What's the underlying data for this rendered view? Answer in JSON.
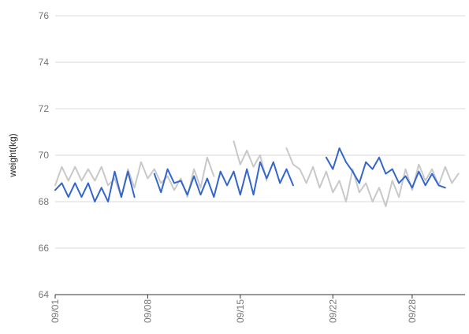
{
  "chart_data": {
    "type": "line",
    "title": "",
    "xlabel": "",
    "ylabel": "weight(kg)",
    "ylim": [
      64,
      76
    ],
    "yticks": [
      64,
      66,
      68,
      70,
      72,
      74,
      76
    ],
    "xlim": [
      "2023-09-01",
      "2023-10-02"
    ],
    "xticks": [
      {
        "date": "2023-09-01",
        "label": "09/01"
      },
      {
        "date": "2023-09-08",
        "label": "09/08"
      },
      {
        "date": "2023-09-15",
        "label": "09/15"
      },
      {
        "date": "2023-09-22",
        "label": "09/22"
      },
      {
        "date": "2023-09-28",
        "label": "09/28"
      }
    ],
    "grid": true,
    "legend": "none",
    "series": [
      {
        "color": "#3366cc",
        "points": [
          {
            "x": "2023-09-01T00:00",
            "y": 68.5
          },
          {
            "x": "2023-09-01T12:00",
            "y": 68.8
          },
          {
            "x": "2023-09-02T00:00",
            "y": 68.2
          },
          {
            "x": "2023-09-02T12:00",
            "y": 68.8
          },
          {
            "x": "2023-09-03T00:00",
            "y": 68.2
          },
          {
            "x": "2023-09-03T12:00",
            "y": 68.8
          },
          {
            "x": "2023-09-04T00:00",
            "y": 68.0
          },
          {
            "x": "2023-09-04T12:00",
            "y": 68.6
          },
          {
            "x": "2023-09-05T00:00",
            "y": 68.0
          },
          {
            "x": "2023-09-05T12:00",
            "y": 69.3
          },
          {
            "x": "2023-09-06T00:00",
            "y": 68.2
          },
          {
            "x": "2023-09-06T12:00",
            "y": 69.3
          },
          {
            "x": "2023-09-07T00:00",
            "y": 68.2
          },
          null,
          {
            "x": "2023-09-08T12:00",
            "y": 69.2
          },
          {
            "x": "2023-09-09T00:00",
            "y": 68.4
          },
          {
            "x": "2023-09-09T12:00",
            "y": 69.4
          },
          {
            "x": "2023-09-10T00:00",
            "y": 68.8
          },
          {
            "x": "2023-09-10T12:00",
            "y": 68.9
          },
          {
            "x": "2023-09-11T00:00",
            "y": 68.3
          },
          {
            "x": "2023-09-11T12:00",
            "y": 69.1
          },
          {
            "x": "2023-09-12T00:00",
            "y": 68.3
          },
          {
            "x": "2023-09-12T12:00",
            "y": 69.0
          },
          {
            "x": "2023-09-13T00:00",
            "y": 68.2
          },
          {
            "x": "2023-09-13T12:00",
            "y": 69.3
          },
          {
            "x": "2023-09-14T00:00",
            "y": 68.7
          },
          {
            "x": "2023-09-14T12:00",
            "y": 69.3
          },
          {
            "x": "2023-09-15T00:00",
            "y": 68.3
          },
          {
            "x": "2023-09-15T12:00",
            "y": 69.4
          },
          {
            "x": "2023-09-16T00:00",
            "y": 68.3
          },
          {
            "x": "2023-09-16T12:00",
            "y": 69.7
          },
          {
            "x": "2023-09-17T00:00",
            "y": 69.0
          },
          {
            "x": "2023-09-17T12:00",
            "y": 69.7
          },
          {
            "x": "2023-09-18T00:00",
            "y": 68.8
          },
          {
            "x": "2023-09-18T12:00",
            "y": 69.4
          },
          {
            "x": "2023-09-19T00:00",
            "y": 68.7
          },
          null,
          {
            "x": "2023-09-21T12:00",
            "y": 69.9
          },
          {
            "x": "2023-09-22T00:00",
            "y": 69.4
          },
          {
            "x": "2023-09-22T12:00",
            "y": 70.3
          },
          {
            "x": "2023-09-23T00:00",
            "y": 69.7
          },
          {
            "x": "2023-09-23T12:00",
            "y": 69.3
          },
          {
            "x": "2023-09-24T00:00",
            "y": 68.8
          },
          {
            "x": "2023-09-24T12:00",
            "y": 69.7
          },
          {
            "x": "2023-09-25T00:00",
            "y": 69.4
          },
          {
            "x": "2023-09-25T12:00",
            "y": 69.9
          },
          {
            "x": "2023-09-26T00:00",
            "y": 69.2
          },
          {
            "x": "2023-09-26T12:00",
            "y": 69.4
          },
          {
            "x": "2023-09-27T00:00",
            "y": 68.8
          },
          {
            "x": "2023-09-27T12:00",
            "y": 69.1
          },
          {
            "x": "2023-09-28T00:00",
            "y": 68.6
          },
          {
            "x": "2023-09-28T12:00",
            "y": 69.3
          },
          {
            "x": "2023-09-29T00:00",
            "y": 68.7
          },
          {
            "x": "2023-09-29T12:00",
            "y": 69.2
          },
          {
            "x": "2023-09-30T00:00",
            "y": 68.7
          },
          {
            "x": "2023-09-30T12:00",
            "y": 68.6
          }
        ]
      },
      {
        "color": "#c8c8c8",
        "points": [
          {
            "x": "2023-09-01T00:00",
            "y": 68.7
          },
          {
            "x": "2023-09-01T12:00",
            "y": 69.5
          },
          {
            "x": "2023-09-02T00:00",
            "y": 68.9
          },
          {
            "x": "2023-09-02T12:00",
            "y": 69.5
          },
          {
            "x": "2023-09-03T00:00",
            "y": 68.9
          },
          {
            "x": "2023-09-03T12:00",
            "y": 69.4
          },
          {
            "x": "2023-09-04T00:00",
            "y": 68.9
          },
          {
            "x": "2023-09-04T12:00",
            "y": 69.5
          },
          {
            "x": "2023-09-05T00:00",
            "y": 68.7
          },
          {
            "x": "2023-09-05T12:00",
            "y": 69.0
          },
          {
            "x": "2023-09-06T00:00",
            "y": 68.2
          },
          {
            "x": "2023-09-06T12:00",
            "y": 69.4
          },
          {
            "x": "2023-09-07T00:00",
            "y": 68.6
          },
          {
            "x": "2023-09-07T12:00",
            "y": 69.7
          },
          {
            "x": "2023-09-08T00:00",
            "y": 69.0
          },
          {
            "x": "2023-09-08T12:00",
            "y": 69.4
          },
          {
            "x": "2023-09-09T00:00",
            "y": 68.8
          },
          {
            "x": "2023-09-09T12:00",
            "y": 69.1
          },
          {
            "x": "2023-09-10T00:00",
            "y": 68.5
          },
          {
            "x": "2023-09-10T12:00",
            "y": 69.0
          },
          {
            "x": "2023-09-11T00:00",
            "y": 68.2
          },
          {
            "x": "2023-09-11T12:00",
            "y": 69.4
          },
          {
            "x": "2023-09-12T00:00",
            "y": 68.6
          },
          {
            "x": "2023-09-12T12:00",
            "y": 69.9
          },
          {
            "x": "2023-09-13T00:00",
            "y": 69.1
          },
          null,
          {
            "x": "2023-09-14T12:00",
            "y": 70.6
          },
          {
            "x": "2023-09-15T00:00",
            "y": 69.6
          },
          {
            "x": "2023-09-15T12:00",
            "y": 70.2
          },
          {
            "x": "2023-09-16T00:00",
            "y": 69.5
          },
          {
            "x": "2023-09-16T12:00",
            "y": 70.0
          },
          {
            "x": "2023-09-17T00:00",
            "y": 68.9
          },
          null,
          {
            "x": "2023-09-18T12:00",
            "y": 70.3
          },
          {
            "x": "2023-09-19T00:00",
            "y": 69.6
          },
          {
            "x": "2023-09-19T12:00",
            "y": 69.4
          },
          {
            "x": "2023-09-20T00:00",
            "y": 68.8
          },
          {
            "x": "2023-09-20T12:00",
            "y": 69.5
          },
          {
            "x": "2023-09-21T00:00",
            "y": 68.6
          },
          {
            "x": "2023-09-21T12:00",
            "y": 69.3
          },
          {
            "x": "2023-09-22T00:00",
            "y": 68.4
          },
          {
            "x": "2023-09-22T12:00",
            "y": 68.9
          },
          {
            "x": "2023-09-23T00:00",
            "y": 68.0
          },
          {
            "x": "2023-09-23T12:00",
            "y": 69.4
          },
          {
            "x": "2023-09-24T00:00",
            "y": 68.4
          },
          {
            "x": "2023-09-24T12:00",
            "y": 68.8
          },
          {
            "x": "2023-09-25T00:00",
            "y": 68.0
          },
          {
            "x": "2023-09-25T12:00",
            "y": 68.6
          },
          {
            "x": "2023-09-26T00:00",
            "y": 67.8
          },
          {
            "x": "2023-09-26T12:00",
            "y": 68.9
          },
          {
            "x": "2023-09-27T00:00",
            "y": 68.2
          },
          {
            "x": "2023-09-27T12:00",
            "y": 69.4
          },
          {
            "x": "2023-09-28T00:00",
            "y": 68.5
          },
          {
            "x": "2023-09-28T12:00",
            "y": 69.6
          },
          {
            "x": "2023-09-29T00:00",
            "y": 68.9
          },
          {
            "x": "2023-09-29T12:00",
            "y": 69.4
          },
          {
            "x": "2023-09-30T00:00",
            "y": 68.7
          },
          {
            "x": "2023-09-30T12:00",
            "y": 69.5
          },
          {
            "x": "2023-10-01T00:00",
            "y": 68.8
          },
          {
            "x": "2023-10-01T12:00",
            "y": 69.2
          }
        ]
      }
    ]
  }
}
